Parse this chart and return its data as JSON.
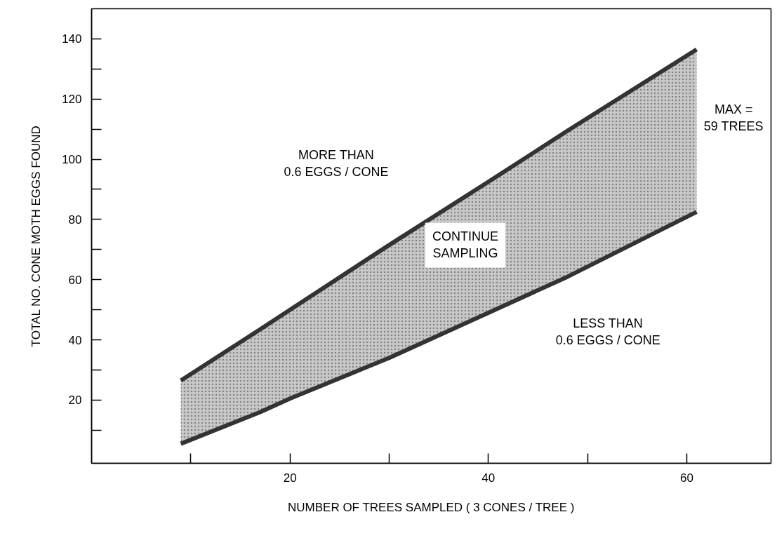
{
  "chart_data": {
    "type": "line",
    "xlabel": "NUMBER OF TREES SAMPLED ( 3 CONES / TREE )",
    "ylabel": "TOTAL NO. CONE MOTH EGGS FOUND",
    "x": [
      9,
      17,
      20,
      30,
      40,
      48,
      61
    ],
    "series": [
      {
        "color": "#333333",
        "values": [
          26.5,
          43.5,
          50,
          71.5,
          92.5,
          109.5,
          136.5
        ],
        "lower": [
          5.5,
          16,
          20.5,
          34,
          49,
          61,
          82.5
        ],
        "upper": [
          26.5,
          43.5,
          50,
          71.5,
          92.5,
          109.5,
          136.5
        ]
      },
      {
        "color": "#333333",
        "values": [
          5.5,
          16,
          20.5,
          34,
          49,
          61,
          82.5
        ]
      }
    ],
    "xlim": [
      0,
      68.5
    ],
    "ylim": [
      -1,
      150
    ],
    "xticks": [
      {
        "value": 10,
        "label": null
      },
      20,
      {
        "value": 30,
        "label": null
      },
      40,
      {
        "value": 50,
        "label": null
      },
      60
    ],
    "yticks": [
      {
        "value": 10,
        "label": null
      },
      20,
      {
        "value": 30,
        "label": null
      },
      40,
      {
        "value": 50,
        "label": null
      },
      60,
      {
        "value": 70,
        "label": null
      },
      80,
      {
        "value": 90,
        "label": null
      },
      100,
      {
        "value": 110,
        "label": null
      },
      120,
      {
        "value": 130,
        "label": null
      },
      140
    ],
    "line_style": "solid",
    "annotations": [
      "MORE THAN\n0.6 EGGS / CONE",
      "CONTINUE\nSAMPLING",
      "LESS THAN\n0.6 EGGS / CONE",
      "MAX =\n59 TREES"
    ]
  }
}
